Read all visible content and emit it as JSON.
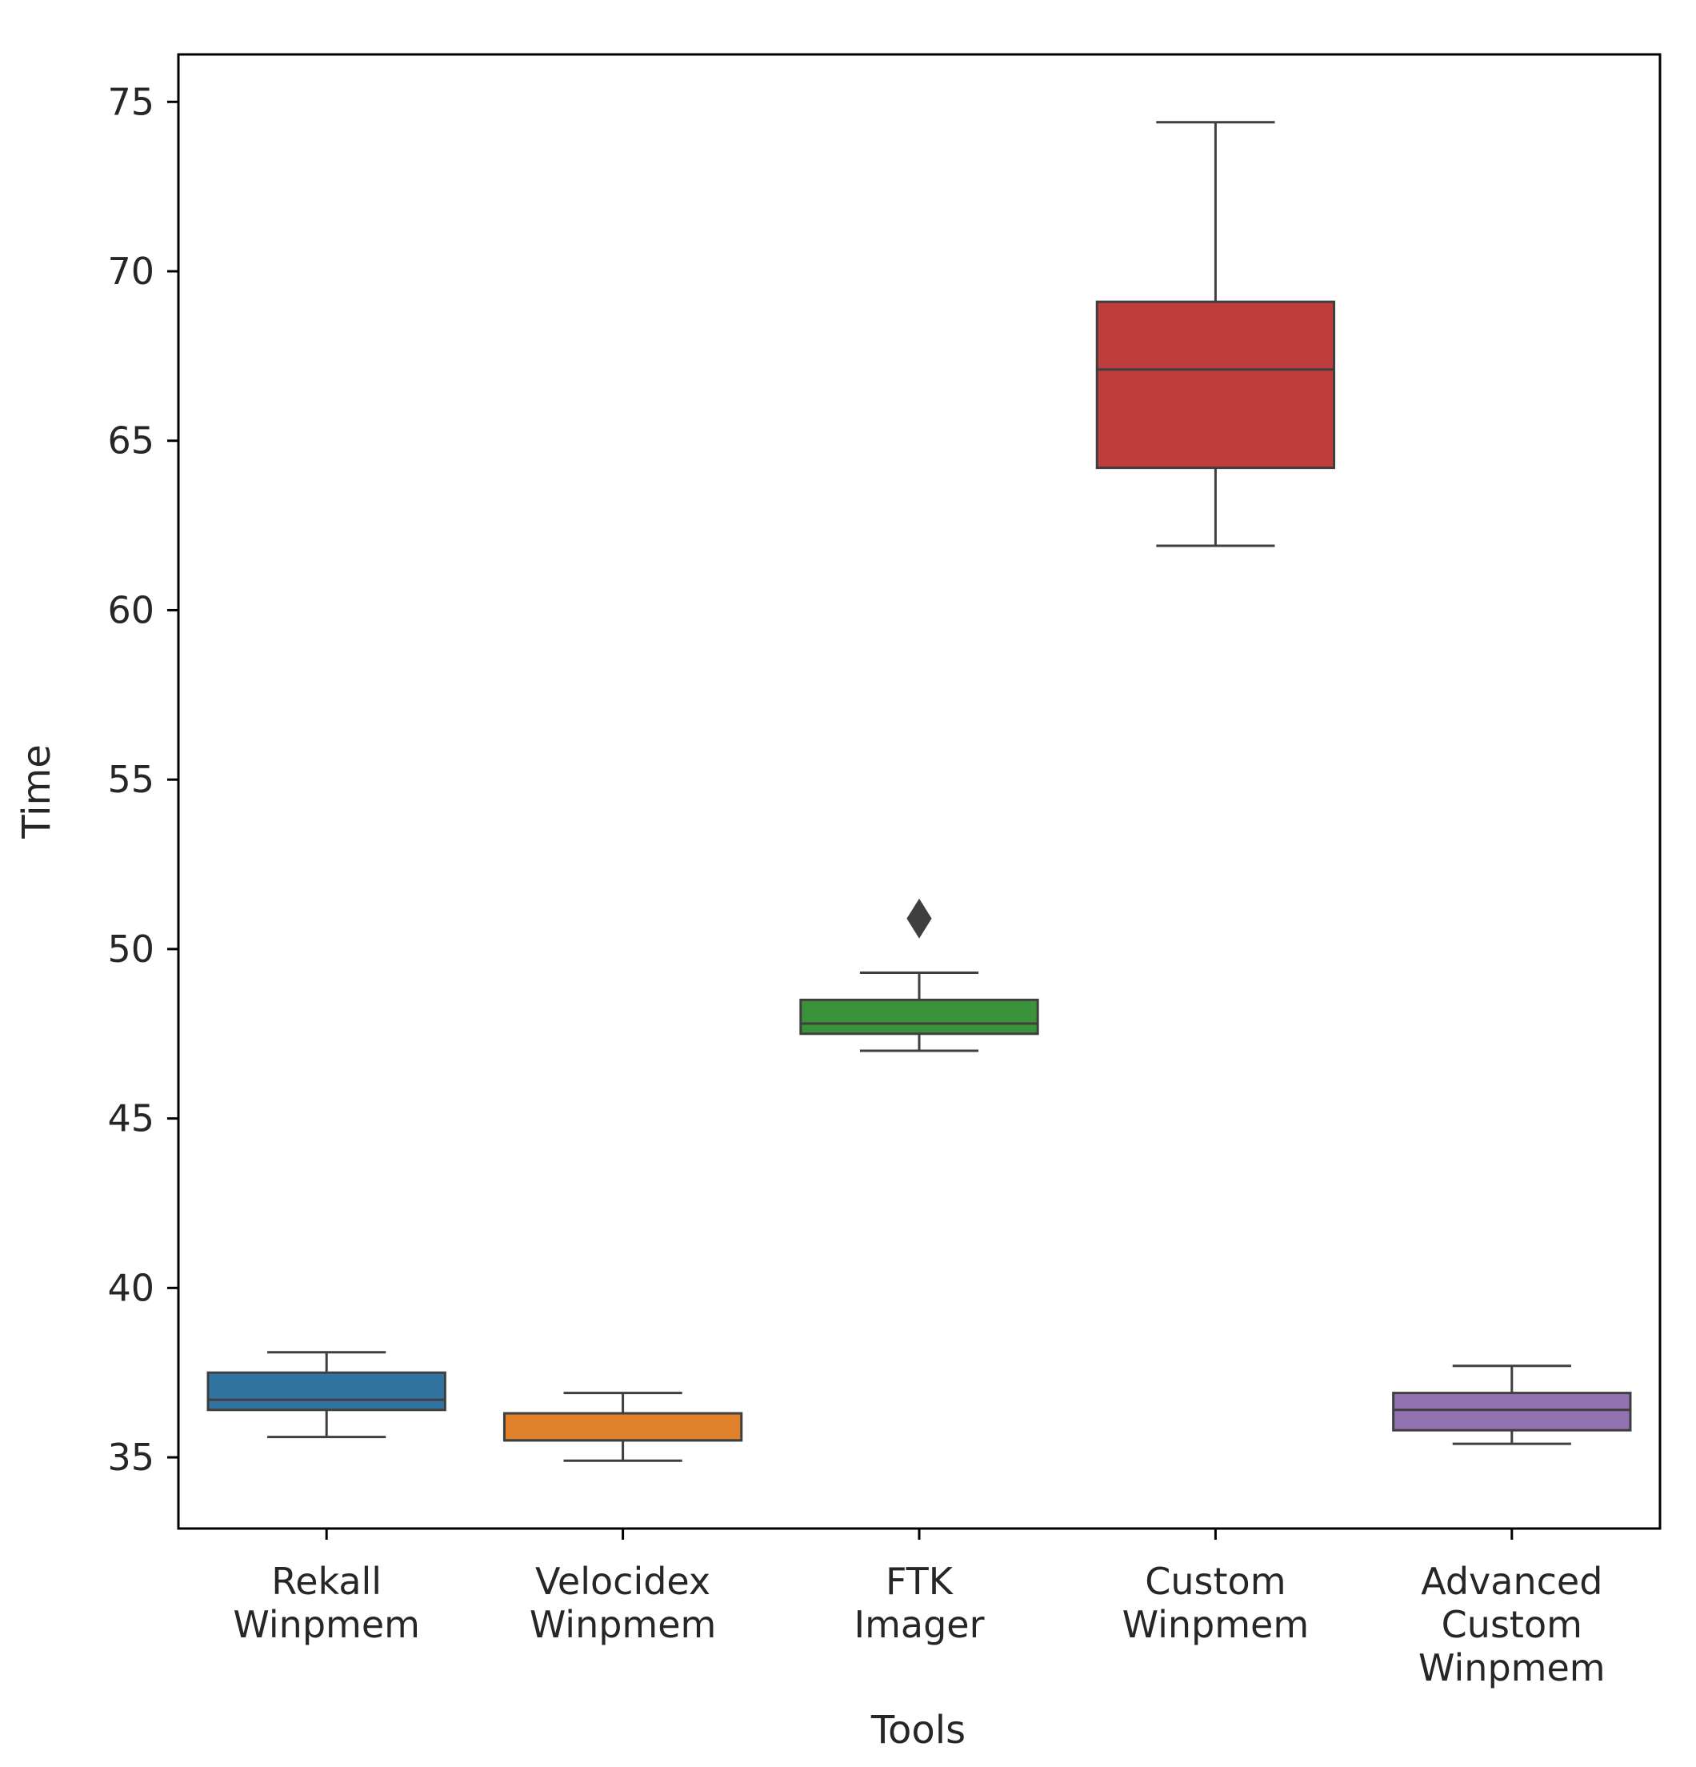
{
  "chart_data": {
    "type": "box",
    "title": "",
    "xlabel": "Tools",
    "ylabel": "Time",
    "ylim": [
      32.9,
      76.4
    ],
    "yticks": [
      35,
      40,
      45,
      50,
      55,
      60,
      65,
      70,
      75
    ],
    "yticks_text": [
      "35",
      "40",
      "45",
      "50",
      "55",
      "60",
      "65",
      "70",
      "75"
    ],
    "grid": false,
    "series": [
      {
        "name": "Rekall Winpmem",
        "label_lines": [
          "Rekall",
          "Winpmem"
        ],
        "color": "#3274a1",
        "whisker_low": 35.6,
        "q1": 36.4,
        "median": 36.7,
        "q3": 37.5,
        "whisker_high": 38.1,
        "outliers": []
      },
      {
        "name": "Velocidex Winpmem",
        "label_lines": [
          "Velocidex",
          "Winpmem"
        ],
        "color": "#e1812c",
        "whisker_low": 34.9,
        "q1": 35.5,
        "median": 35.5,
        "q3": 36.3,
        "whisker_high": 36.9,
        "outliers": []
      },
      {
        "name": "FTK Imager",
        "label_lines": [
          "FTK",
          "Imager"
        ],
        "color": "#3a923a",
        "whisker_low": 47.0,
        "q1": 47.5,
        "median": 47.8,
        "q3": 48.5,
        "whisker_high": 49.3,
        "outliers": [
          50.9
        ]
      },
      {
        "name": "Custom Winpmem",
        "label_lines": [
          "Custom",
          "Winpmem"
        ],
        "color": "#c03d3e",
        "whisker_low": 61.9,
        "q1": 64.2,
        "median": 67.1,
        "q3": 69.1,
        "whisker_high": 74.4,
        "outliers": []
      },
      {
        "name": "Advanced Custom Winpmem",
        "label_lines": [
          "Advanced",
          "Custom",
          "Winpmem"
        ],
        "color": "#9372b2",
        "whisker_low": 35.4,
        "q1": 35.8,
        "median": 36.4,
        "q3": 36.9,
        "whisker_high": 37.7,
        "outliers": []
      }
    ]
  }
}
